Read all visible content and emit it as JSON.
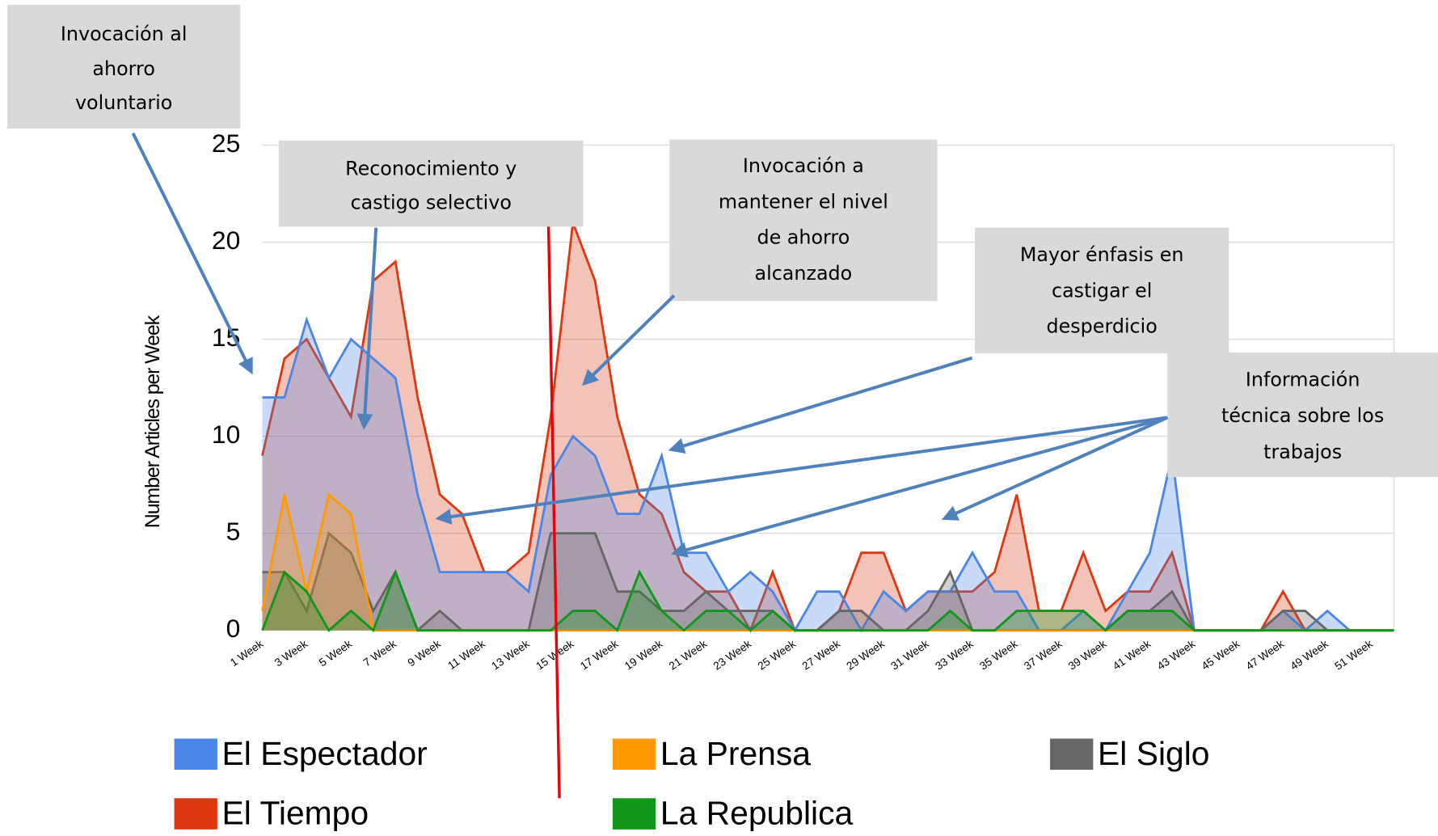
{
  "chart_data": {
    "type": "area",
    "y_label": "Number Articles per Week",
    "categories": [
      "1 Week",
      null,
      "3 Week",
      null,
      "5 Week",
      null,
      "7 Week",
      null,
      "9 Week",
      null,
      "11 Week",
      null,
      "13 Week",
      null,
      "15 Week",
      null,
      "17 Week",
      null,
      "19 Week",
      null,
      "21 Week",
      null,
      "23 Week",
      null,
      "25 Week",
      null,
      "27 Week",
      null,
      "29 Week",
      null,
      "31 Week",
      null,
      "33 Week",
      null,
      "35 Week",
      null,
      "37 Week",
      null,
      "39 Week",
      null,
      "41 Week",
      null,
      "43 Week",
      null,
      "45 Week",
      null,
      "47 Week",
      null,
      "49 Week",
      null,
      "51 Week",
      null
    ],
    "series": [
      {
        "name": "El Espectador",
        "color": "#4a86e8",
        "values": [
          12,
          12,
          16,
          13,
          15,
          14,
          13,
          7,
          3,
          3,
          3,
          3,
          2,
          8,
          10,
          9,
          6,
          6,
          9,
          4,
          4,
          2,
          3,
          2,
          0,
          2,
          2,
          0,
          2,
          1,
          2,
          2,
          4,
          2,
          2,
          0,
          0,
          1,
          0,
          2,
          4,
          9,
          0,
          0,
          0,
          0,
          1,
          0,
          1,
          0,
          0,
          0
        ]
      },
      {
        "name": "El Tiempo",
        "color": "#dc3912",
        "values": [
          9,
          14,
          15,
          13,
          11,
          18,
          19,
          12,
          7,
          6,
          3,
          3,
          4,
          11,
          21,
          18,
          11,
          7,
          6,
          3,
          2,
          2,
          0,
          3,
          0,
          0,
          1,
          4,
          4,
          1,
          2,
          2,
          2,
          3,
          7,
          1,
          1,
          4,
          1,
          2,
          2,
          4,
          0,
          0,
          0,
          0,
          2,
          0,
          0,
          0,
          0,
          0
        ]
      },
      {
        "name": "La Prensa",
        "color": "#ff9900",
        "values": [
          1,
          7,
          2,
          7,
          6,
          0,
          0,
          0,
          0,
          0,
          0,
          0,
          0,
          0,
          0,
          0,
          0,
          0,
          0,
          0,
          0,
          0,
          0,
          0,
          0,
          0,
          0,
          0,
          0,
          0,
          0,
          0,
          0,
          0,
          0,
          0,
          0,
          0,
          0,
          0,
          0,
          0,
          0,
          0,
          0,
          0,
          0,
          0,
          0,
          0,
          0,
          0
        ]
      },
      {
        "name": "El Siglo",
        "color": "#666666",
        "values": [
          3,
          3,
          1,
          5,
          4,
          1,
          3,
          0,
          1,
          0,
          0,
          0,
          0,
          5,
          5,
          5,
          2,
          2,
          1,
          1,
          2,
          1,
          1,
          1,
          0,
          0,
          1,
          1,
          0,
          0,
          1,
          3,
          0,
          0,
          0,
          0,
          0,
          0,
          0,
          1,
          1,
          2,
          0,
          0,
          0,
          0,
          1,
          1,
          0,
          0,
          0,
          0
        ]
      },
      {
        "name": "La Republica",
        "color": "#109618",
        "values": [
          0,
          3,
          2,
          0,
          1,
          0,
          3,
          0,
          0,
          0,
          0,
          0,
          0,
          0,
          1,
          1,
          0,
          3,
          1,
          0,
          1,
          1,
          0,
          1,
          0,
          0,
          0,
          0,
          0,
          0,
          0,
          1,
          0,
          0,
          1,
          1,
          1,
          1,
          0,
          1,
          1,
          1,
          0,
          0,
          0,
          0,
          0,
          0,
          0,
          0,
          0,
          0
        ]
      }
    ],
    "ylim": [
      0,
      25
    ],
    "yticks": [
      0,
      5,
      10,
      15,
      20,
      25
    ],
    "grid": true,
    "annotations": [
      {
        "lines": [
          "Invocación al",
          "ahorro",
          "voluntario"
        ]
      },
      {
        "lines": [
          "Reconocimiento y",
          "castigo selectivo"
        ]
      },
      {
        "lines": [
          "Invocación a",
          "mantener el nivel",
          "de ahorro",
          "alcanzado"
        ]
      },
      {
        "lines": [
          "Mayor énfasis en",
          "castigar el",
          "desperdicio"
        ]
      },
      {
        "lines": [
          "Información",
          "técnica sobre los",
          "trabajos"
        ]
      }
    ]
  }
}
